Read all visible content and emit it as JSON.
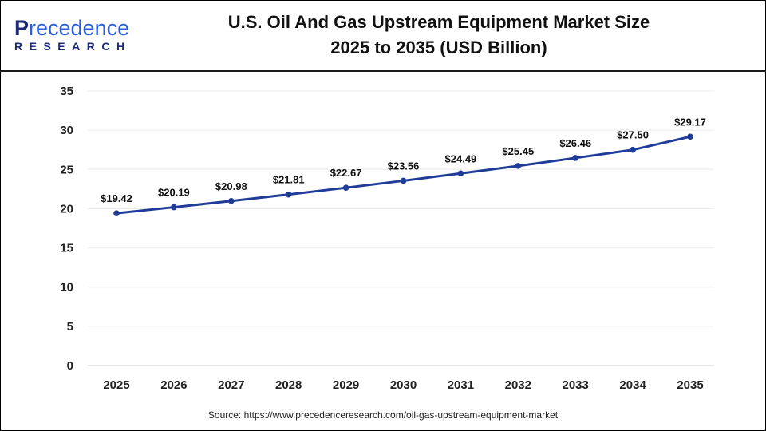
{
  "logo": {
    "line1_a": "P",
    "line1_b": "recedence",
    "line2": "RESEARCH"
  },
  "source": "Source: https://www.precedenceresearch.com/oil-gas-upstream-equipment-market",
  "colors": {
    "line": "#1f3c99",
    "grid": "#ececec"
  },
  "chart_data": {
    "type": "line",
    "title": "U.S. Oil And Gas Upstream Equipment Market Size",
    "subtitle": "2025 to 2035 (USD Billion)",
    "categories": [
      "2025",
      "2026",
      "2027",
      "2028",
      "2029",
      "2030",
      "2031",
      "2032",
      "2033",
      "2034",
      "2035"
    ],
    "values": [
      19.42,
      20.19,
      20.98,
      21.81,
      22.67,
      23.56,
      24.49,
      25.45,
      26.46,
      27.5,
      29.17
    ],
    "data_labels": [
      "$19.42",
      "$20.19",
      "$20.98",
      "$21.81",
      "$22.67",
      "$23.56",
      "$24.49",
      "$25.45",
      "$26.46",
      "$27.50",
      "$29.17"
    ],
    "yticks": [
      0,
      5,
      10,
      15,
      20,
      25,
      30,
      35
    ],
    "ylim": [
      0,
      35
    ],
    "grid": true,
    "legend": "none"
  }
}
